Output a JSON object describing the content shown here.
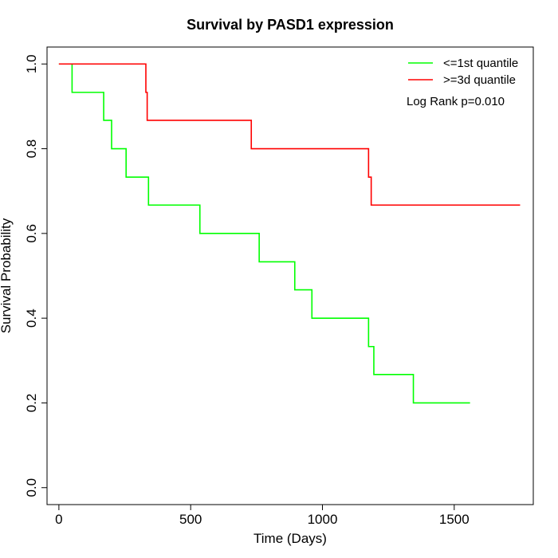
{
  "chart_data": {
    "type": "line",
    "title": "Survival by PASD1 expression",
    "xlabel": "Time (Days)",
    "ylabel": "Survival Probability",
    "xlim": [
      -45,
      1800
    ],
    "ylim": [
      -0.04,
      1.04
    ],
    "x_ticks": [
      0,
      500,
      1000,
      1500
    ],
    "y_ticks": [
      0.0,
      0.2,
      0.4,
      0.6,
      0.8,
      1.0
    ],
    "y_tick_labels": [
      "0.0",
      "0.2",
      "0.4",
      "0.6",
      "0.8",
      "1.0"
    ],
    "grid": false,
    "legend_position": "top-right",
    "annotation": "Log Rank p=0.010",
    "series": [
      {
        "name": "<=1st quantile",
        "color": "#00ff00",
        "x": [
          0,
          50,
          170,
          200,
          255,
          340,
          535,
          760,
          895,
          960,
          1175,
          1195,
          1345,
          1560
        ],
        "y": [
          1.0,
          0.933,
          0.867,
          0.8,
          0.733,
          0.667,
          0.6,
          0.533,
          0.467,
          0.4,
          0.333,
          0.267,
          0.2,
          0.2
        ]
      },
      {
        "name": ">=3d quantile",
        "color": "#ff0000",
        "x": [
          0,
          330,
          335,
          730,
          1175,
          1185,
          1750
        ],
        "y": [
          1.0,
          0.933,
          0.867,
          0.8,
          0.733,
          0.667,
          0.667
        ]
      }
    ]
  }
}
